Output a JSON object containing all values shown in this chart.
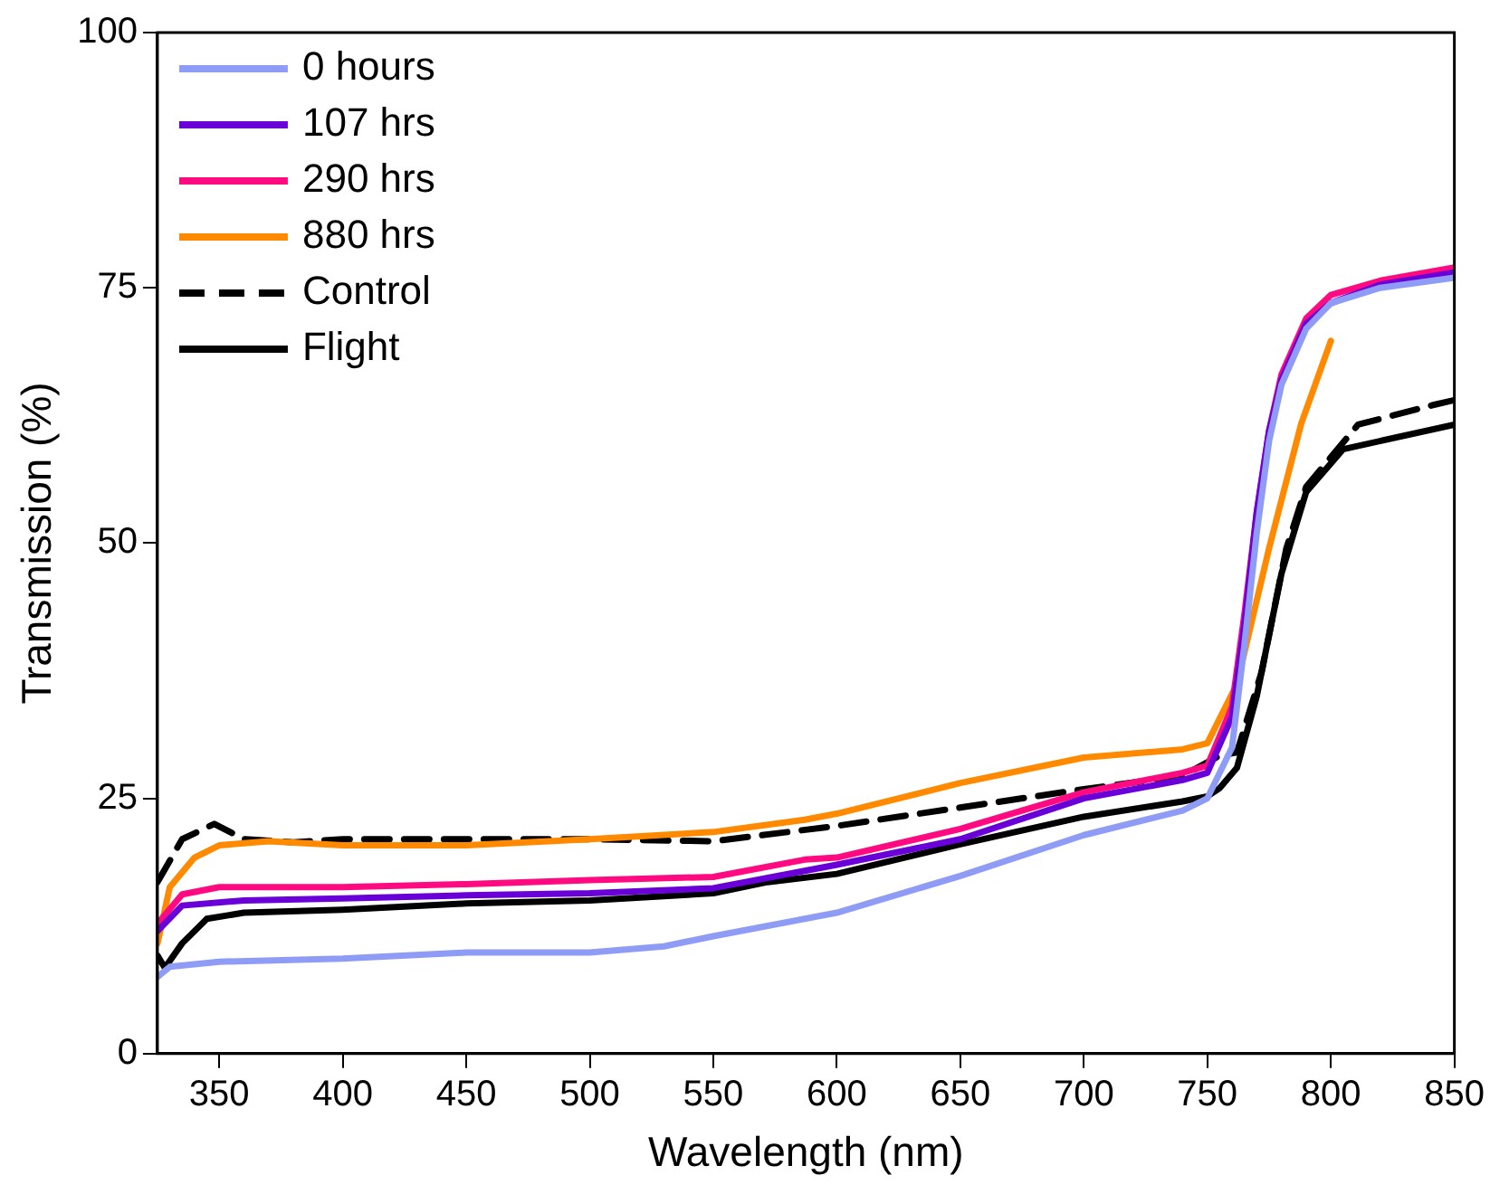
{
  "chart_data": {
    "type": "line",
    "xlabel": "Wavelength (nm)",
    "ylabel": "Transmission (%)",
    "xlim": [
      325,
      850
    ],
    "xticks": [
      350,
      400,
      450,
      500,
      550,
      600,
      650,
      700,
      750,
      800,
      850
    ],
    "ylim": [
      0,
      100
    ],
    "yticks": [
      0,
      25,
      50,
      75,
      100
    ],
    "grid": false,
    "legend": "top left",
    "marker": "none",
    "series": [
      {
        "name": "0 hours",
        "color": "#8f9cf5",
        "x": [
          325,
          330,
          350,
          400,
          450,
          500,
          530,
          550,
          600,
          650,
          700,
          740,
          750,
          760,
          765,
          770,
          775,
          780,
          790,
          800,
          820,
          850
        ],
        "values": [
          7.5,
          8.5,
          9,
          9.3,
          9.9,
          9.9,
          10.5,
          11.5,
          13.8,
          17.4,
          21.4,
          23.8,
          25,
          30,
          40,
          51,
          60,
          65.5,
          71,
          73.5,
          75,
          76
        ]
      },
      {
        "name": "107 hrs",
        "color": "#6a00d8",
        "x": [
          325,
          335,
          360,
          400,
          450,
          500,
          550,
          587,
          600,
          650,
          700,
          740,
          750,
          760,
          765,
          770,
          775,
          780,
          790,
          800,
          820,
          850
        ],
        "values": [
          12,
          14.5,
          15,
          15.2,
          15.5,
          15.7,
          16.2,
          17.9,
          18.5,
          21,
          25,
          26.8,
          27.5,
          33,
          42,
          53,
          61,
          66,
          71.5,
          73.5,
          75.3,
          76.5
        ]
      },
      {
        "name": "290 hrs",
        "color": "#ff0a80",
        "x": [
          325,
          335,
          350,
          400,
          450,
          500,
          550,
          587,
          600,
          650,
          700,
          740,
          750,
          760,
          765,
          770,
          775,
          780,
          790,
          800,
          820,
          850
        ],
        "values": [
          12.7,
          15.6,
          16.3,
          16.3,
          16.6,
          17,
          17.3,
          19,
          19.2,
          22,
          25.6,
          27.5,
          28.2,
          34,
          43,
          53,
          61,
          66.5,
          72,
          74.3,
          75.7,
          77
        ]
      },
      {
        "name": "880 hrs",
        "color": "#ff8a00",
        "x": [
          325,
          330,
          340,
          350,
          370,
          400,
          450,
          500,
          550,
          587,
          600,
          650,
          700,
          740,
          750,
          762,
          775,
          788,
          800
        ],
        "values": [
          10.8,
          16.3,
          19.2,
          20.4,
          20.8,
          20.4,
          20.4,
          21,
          21.7,
          22.9,
          23.5,
          26.5,
          29,
          29.8,
          30.4,
          36.2,
          49.5,
          61.7,
          69.8
        ]
      },
      {
        "name": "Control",
        "color": "#000000",
        "line_style": "dashed",
        "x": [
          325,
          335,
          348,
          360,
          380,
          400,
          450,
          500,
          550,
          600,
          650,
          700,
          740,
          755,
          762,
          772,
          782,
          790,
          811,
          841,
          850
        ],
        "values": [
          16.8,
          21,
          22.5,
          21,
          20.7,
          21,
          21,
          21,
          20.8,
          22.3,
          24.1,
          25.9,
          27.2,
          29.2,
          29.5,
          37.4,
          49.5,
          55.5,
          61.6,
          63.5,
          64
        ]
      },
      {
        "name": "Flight",
        "color": "#000000",
        "x": [
          325,
          328,
          335,
          345,
          360,
          400,
          450,
          500,
          550,
          572,
          600,
          650,
          700,
          740,
          750,
          755,
          762,
          770,
          780,
          790,
          805,
          850
        ],
        "values": [
          9.6,
          8.4,
          10.8,
          13.2,
          13.8,
          14.1,
          14.7,
          15,
          15.7,
          16.8,
          17.6,
          20.5,
          23.2,
          24.7,
          25.2,
          26,
          28,
          35,
          47,
          55,
          59.2,
          61.6
        ]
      }
    ]
  }
}
